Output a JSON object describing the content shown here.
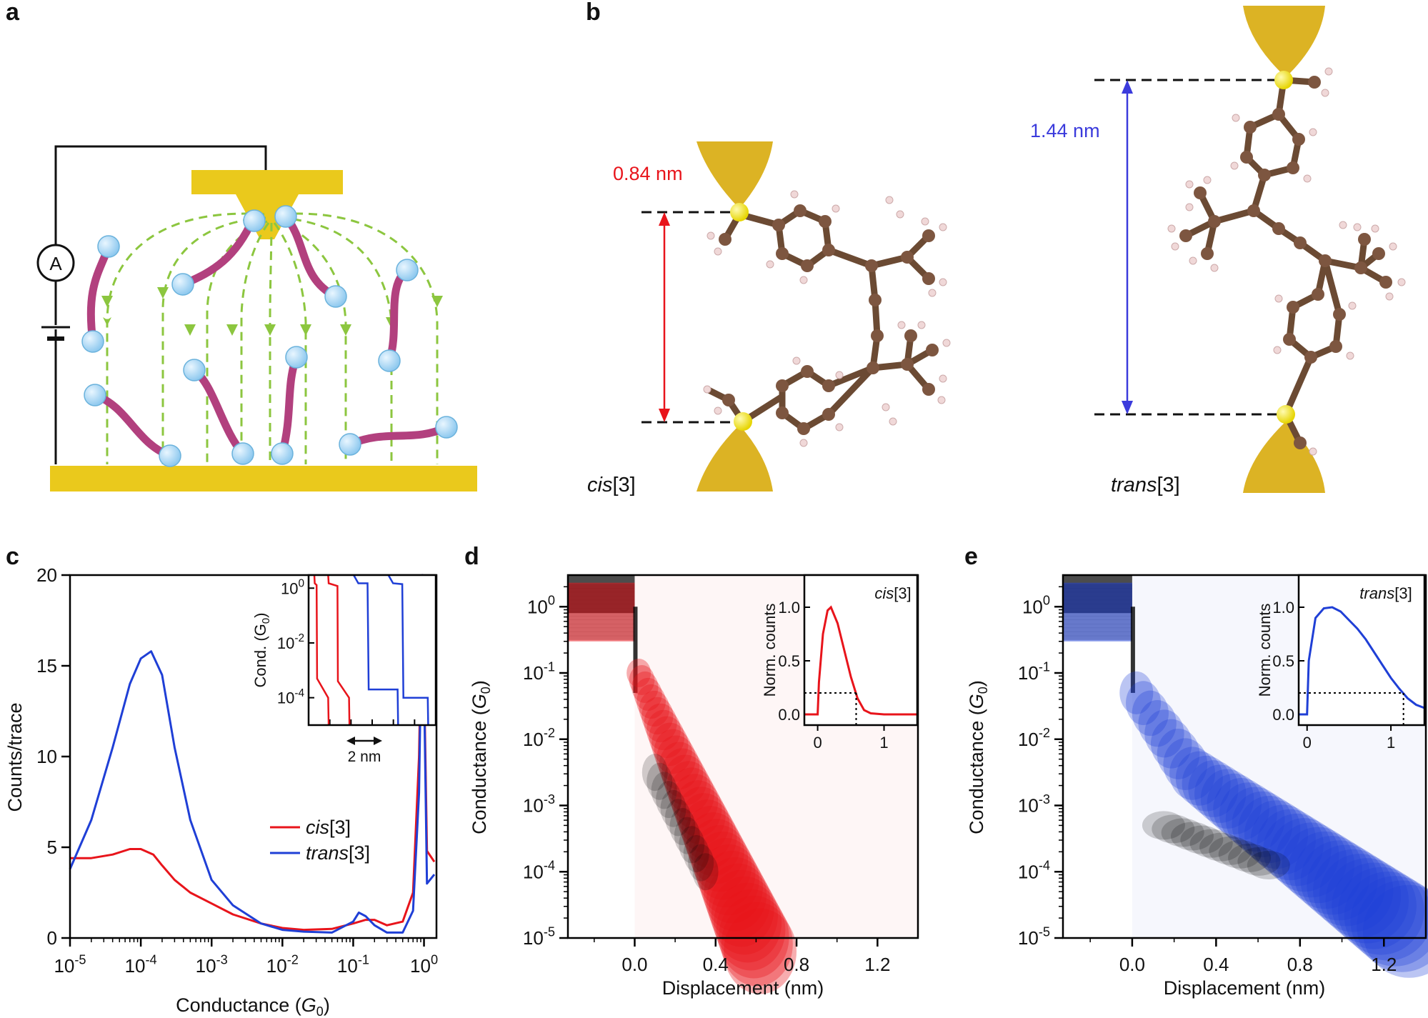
{
  "panels": {
    "a": {
      "label": "a",
      "meter": "A"
    },
    "b": {
      "label": "b",
      "cis_distance": "0.84 nm",
      "trans_distance": "1.44 nm",
      "cis_name": "cis",
      "cis_suffix": "[3]",
      "trans_name": "trans",
      "trans_suffix": "[3]"
    },
    "c": {
      "label": "c",
      "ylabel": "Counts/trace",
      "xlabel_main": "Conductance (",
      "xlabel_sym": "G",
      "xlabel_sub": "0",
      "xlabel_end": ")",
      "inset_ylabel": "Cond. (G",
      "inset_ylabel_sub": "0",
      "inset_ylabel_end": ")",
      "inset_scale": "2 nm",
      "legend": [
        {
          "name": "cis",
          "suffix": "[3]",
          "color": "#e8141b"
        },
        {
          "name": "trans",
          "suffix": "[3]",
          "color": "#1f3fd6"
        }
      ]
    },
    "d": {
      "label": "d",
      "ylabel": "Conductance (",
      "ylabel_sym": "G",
      "ylabel_sub": "0",
      "ylabel_end": ")",
      "xlabel": "Displacement (nm)",
      "inset_ylabel": "Norm. counts",
      "inset_title_name": "cis",
      "inset_title_suffix": "[3]"
    },
    "e": {
      "label": "e",
      "ylabel": "Conductance (",
      "ylabel_sym": "G",
      "ylabel_sub": "0",
      "ylabel_end": ")",
      "xlabel": "Displacement (nm)",
      "inset_ylabel": "Norm. counts",
      "inset_title_name": "trans",
      "inset_title_suffix": "[3]"
    }
  },
  "colors": {
    "gold": "#e2b40f",
    "molecule": "#b2407e",
    "field": "#8cc63f",
    "cis": "#e8141b",
    "trans": "#1f3fd6"
  },
  "chart_data": [
    {
      "id": "c",
      "type": "line",
      "xscale": "log",
      "xlim": [
        1e-05,
        1.5
      ],
      "ylim": [
        0,
        20
      ],
      "xticks": [
        "10-5",
        "10-4",
        "10-3",
        "10-2",
        "10-1",
        "100"
      ],
      "yticks": [
        "0",
        "5",
        "10",
        "15",
        "20"
      ],
      "series": [
        {
          "name": "cis[3]",
          "color": "#e8141b",
          "x": [
            1e-05,
            2e-05,
            4e-05,
            7e-05,
            0.0001,
            0.00015,
            0.0002,
            0.0003,
            0.0005,
            0.001,
            0.002,
            0.005,
            0.01,
            0.02,
            0.05,
            0.1,
            0.15,
            0.2,
            0.3,
            0.5,
            0.7,
            0.85,
            0.95,
            1.1,
            1.4
          ],
          "y": [
            4.4,
            4.4,
            4.6,
            4.9,
            4.9,
            4.6,
            4.0,
            3.2,
            2.5,
            1.9,
            1.3,
            0.8,
            0.55,
            0.45,
            0.5,
            0.8,
            1.0,
            1.0,
            0.7,
            0.9,
            2.5,
            10.0,
            20.0,
            4.8,
            4.2
          ]
        },
        {
          "name": "trans[3]",
          "color": "#1f3fd6",
          "x": [
            1e-05,
            2e-05,
            4e-05,
            7e-05,
            0.0001,
            0.00014,
            0.0002,
            0.0003,
            0.0005,
            0.001,
            0.002,
            0.005,
            0.01,
            0.02,
            0.05,
            0.1,
            0.12,
            0.15,
            0.2,
            0.3,
            0.5,
            0.7,
            0.85,
            0.95,
            1.1,
            1.4
          ],
          "y": [
            3.8,
            6.5,
            10.5,
            14.0,
            15.4,
            15.8,
            14.5,
            10.5,
            6.5,
            3.2,
            1.8,
            0.8,
            0.45,
            0.35,
            0.3,
            0.9,
            1.4,
            1.2,
            0.7,
            0.3,
            0.3,
            1.5,
            8.0,
            20.0,
            3.0,
            3.5
          ]
        }
      ],
      "xlabel": "Conductance (G0)",
      "ylabel": "Counts/trace",
      "legend_position": "lower-right"
    },
    {
      "id": "c-inset",
      "type": "line",
      "yscale": "log",
      "ylim": [
        1e-05,
        3
      ],
      "yticks": [
        "100",
        "10-2",
        "10-4"
      ],
      "scale_bar": "2 nm",
      "series": [
        {
          "name": "cis-trace-1",
          "color": "#e8141b",
          "x": [
            0,
            0.02,
            0.1,
            0.12,
            0.6,
            0.62
          ],
          "y": [
            3,
            1.5,
            1.3,
            0.0005,
            0.0001,
            1e-05
          ]
        },
        {
          "name": "cis-trace-2",
          "color": "#e8141b",
          "x": [
            0.6,
            0.62,
            1.0,
            1.02,
            1.5,
            1.52
          ],
          "y": [
            3,
            1.5,
            1.2,
            0.0004,
            0.0001,
            1e-05
          ]
        },
        {
          "name": "trans-trace-1",
          "color": "#1f3fd6",
          "x": [
            1.7,
            1.9,
            2.3,
            2.35,
            3.6,
            3.62
          ],
          "y": [
            3,
            1.5,
            1.5,
            0.0002,
            0.0002,
            1e-05
          ]
        },
        {
          "name": "trans-trace-2",
          "color": "#1f3fd6",
          "x": [
            3.2,
            3.4,
            3.8,
            3.85,
            4.9,
            4.92
          ],
          "y": [
            3,
            1.5,
            1.4,
            0.0001,
            0.0001,
            1e-05
          ]
        }
      ]
    },
    {
      "id": "d",
      "type": "heatmap",
      "color": "#e8141b",
      "xlim": [
        -0.33,
        1.4
      ],
      "ylim": [
        1e-05,
        3
      ],
      "yscale": "log",
      "xticks": [
        "0.0",
        "0.4",
        "0.8",
        "1.2"
      ],
      "yticks": [
        "100",
        "10-1",
        "10-2",
        "10-3",
        "10-4",
        "10-5"
      ],
      "xlabel": "Displacement (nm)",
      "ylabel": "Conductance (G0)"
    },
    {
      "id": "d-inset",
      "type": "line",
      "color": "#e8141b",
      "xlim": [
        -0.2,
        1.5
      ],
      "ylim": [
        -0.1,
        1.3
      ],
      "xticks": [
        "0",
        "1"
      ],
      "yticks": [
        "0.0",
        "0.5",
        "1.0"
      ],
      "x": [
        -0.2,
        0.0,
        0.02,
        0.08,
        0.15,
        0.2,
        0.3,
        0.4,
        0.5,
        0.6,
        0.7,
        0.8,
        1.0,
        1.5
      ],
      "y": [
        0,
        0,
        0.3,
        0.75,
        0.97,
        1.0,
        0.85,
        0.6,
        0.35,
        0.15,
        0.04,
        0.01,
        0,
        0
      ],
      "threshold": 0.2,
      "threshold_x": 0.58,
      "ylabel": "Norm. counts",
      "title": "cis[3]"
    },
    {
      "id": "e",
      "type": "heatmap",
      "color": "#1f3fd6",
      "xlim": [
        -0.33,
        1.4
      ],
      "ylim": [
        1e-05,
        3
      ],
      "yscale": "log",
      "xticks": [
        "0.0",
        "0.4",
        "0.8",
        "1.2"
      ],
      "yticks": [
        "100",
        "10-1",
        "10-2",
        "10-3",
        "10-4",
        "10-5"
      ],
      "xlabel": "Displacement (nm)",
      "ylabel": "Conductance (G0)"
    },
    {
      "id": "e-inset",
      "type": "line",
      "color": "#1f3fd6",
      "xlim": [
        -0.1,
        1.4
      ],
      "ylim": [
        -0.1,
        1.3
      ],
      "xticks": [
        "0",
        "1"
      ],
      "yticks": [
        "0.0",
        "0.5",
        "1.0"
      ],
      "x": [
        -0.1,
        0.0,
        0.02,
        0.1,
        0.2,
        0.3,
        0.4,
        0.5,
        0.6,
        0.7,
        0.8,
        0.9,
        1.0,
        1.1,
        1.2,
        1.3,
        1.4
      ],
      "y": [
        0,
        0,
        0.5,
        0.9,
        0.99,
        1.0,
        0.96,
        0.88,
        0.8,
        0.7,
        0.58,
        0.46,
        0.34,
        0.24,
        0.15,
        0.09,
        0.06
      ],
      "threshold": 0.2,
      "threshold_x": 1.15,
      "ylabel": "Norm. counts",
      "title": "trans[3]"
    }
  ]
}
